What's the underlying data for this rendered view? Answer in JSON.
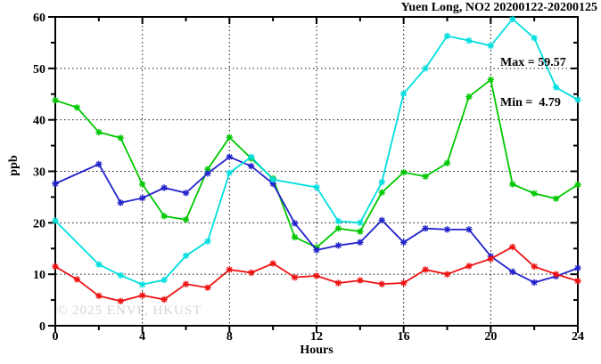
{
  "title": "Yuen Long, NO2 20200122-20200125",
  "annotation": {
    "max_label": "Max = 59.57",
    "min_label": "Min =  4.79"
  },
  "watermark": "© 2025 ENVF, HKUST",
  "axis": {
    "x_label": "Hours",
    "y_label": "ppb"
  },
  "chart_data": {
    "type": "line",
    "title": "Yuen Long, NO2 20200122-20200125",
    "xlabel": "Hours",
    "ylabel": "ppb",
    "xlim": [
      0,
      24
    ],
    "ylim": [
      0,
      60
    ],
    "xticks_major": [
      0,
      4,
      8,
      12,
      16,
      20,
      24
    ],
    "xticks_minor": [
      2,
      6,
      10,
      14,
      18,
      22
    ],
    "yticks_major": [
      0,
      10,
      20,
      30,
      40,
      50,
      60
    ],
    "yticks_minor": [
      5,
      15,
      25,
      35,
      45,
      55
    ],
    "grid": {
      "x": [
        4,
        8,
        12,
        16,
        20
      ],
      "y": [
        10,
        20,
        30,
        40,
        50
      ]
    },
    "legend_position": "none",
    "max": 59.57,
    "min": 4.79,
    "x": [
      0,
      1,
      2,
      3,
      4,
      5,
      6,
      7,
      8,
      9,
      10,
      11,
      12,
      13,
      14,
      15,
      16,
      17,
      18,
      19,
      20,
      21,
      22,
      23,
      24
    ],
    "series": [
      {
        "name": "green",
        "color": "#00c800",
        "values": [
          43.8,
          42.4,
          37.6,
          36.5,
          27.5,
          21.3,
          20.6,
          30.4,
          36.6,
          32.5,
          28.6,
          17.2,
          15.2,
          18.9,
          18.3,
          25.9,
          29.8,
          29.0,
          31.6,
          44.5,
          47.8,
          27.5,
          25.7,
          24.7,
          27.4
        ]
      },
      {
        "name": "blue",
        "color": "#2222cc",
        "values": [
          27.6,
          null,
          31.4,
          23.9,
          24.8,
          26.8,
          25.8,
          29.6,
          32.8,
          31.0,
          27.6,
          19.9,
          14.7,
          15.6,
          16.2,
          20.5,
          16.2,
          18.9,
          18.7,
          18.7,
          13.5,
          10.5,
          8.4,
          9.6,
          11.2
        ]
      },
      {
        "name": "cyan",
        "color": "#00dede",
        "values": [
          20.4,
          null,
          11.9,
          9.8,
          8.0,
          8.9,
          13.6,
          16.4,
          29.7,
          32.8,
          28.4,
          null,
          26.9,
          20.3,
          20.0,
          27.9,
          45.1,
          50.0,
          56.3,
          55.4,
          54.4,
          59.57,
          55.9,
          46.3,
          43.9
        ]
      },
      {
        "name": "red",
        "color": "#ee1111",
        "values": [
          11.5,
          9.0,
          5.8,
          4.79,
          5.9,
          5.1,
          8.1,
          7.4,
          10.9,
          10.3,
          12.1,
          9.4,
          9.7,
          8.3,
          8.8,
          8.1,
          8.3,
          10.9,
          10.0,
          11.6,
          13.0,
          15.3,
          11.5,
          10.0,
          8.7
        ]
      }
    ]
  }
}
